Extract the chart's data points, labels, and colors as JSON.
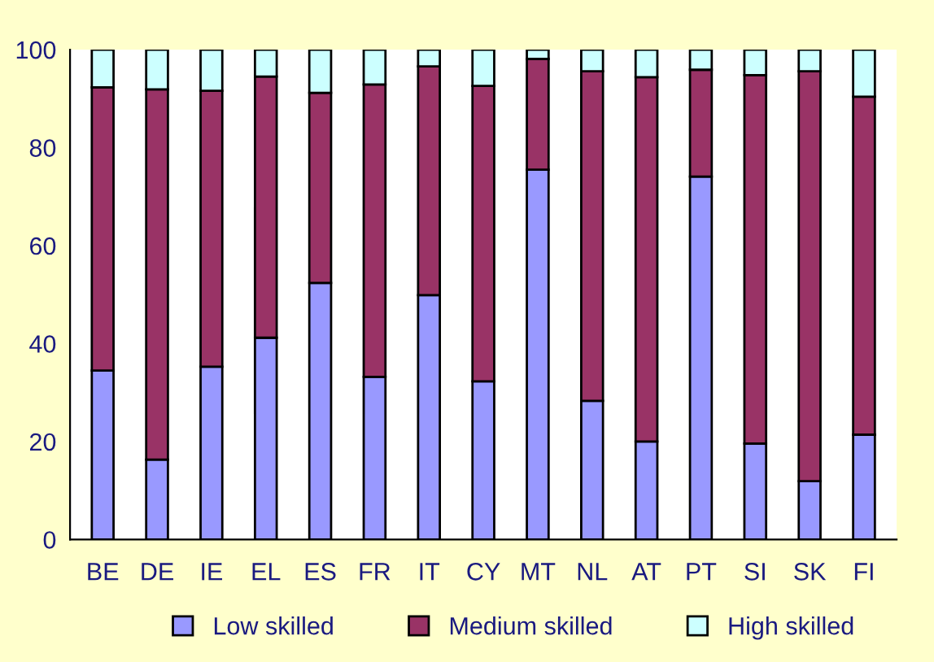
{
  "chart_data": {
    "type": "bar",
    "stacked": true,
    "categories": [
      "BE",
      "DE",
      "IE",
      "EL",
      "ES",
      "FR",
      "IT",
      "CY",
      "MT",
      "NL",
      "AT",
      "PT",
      "SI",
      "SK",
      "FI"
    ],
    "series": [
      {
        "name": "Low skilled",
        "color": "#9999ff",
        "values": [
          34.5,
          16.3,
          35.3,
          41.2,
          52.4,
          33.2,
          49.9,
          32.3,
          75.5,
          28.3,
          20.0,
          74.1,
          19.6,
          11.9,
          21.4
        ]
      },
      {
        "name": "Medium skilled",
        "color": "#993366",
        "values": [
          57.8,
          75.6,
          56.3,
          53.3,
          38.8,
          59.7,
          46.7,
          60.3,
          22.6,
          67.3,
          74.4,
          21.8,
          75.2,
          83.7,
          69.0
        ]
      },
      {
        "name": "High skilled",
        "color": "#ccffff",
        "values": [
          7.7,
          8.1,
          8.4,
          5.5,
          8.8,
          7.1,
          3.4,
          7.4,
          1.9,
          4.4,
          5.6,
          4.1,
          5.2,
          4.4,
          9.6
        ]
      }
    ],
    "ylim": [
      0,
      100
    ],
    "yticks": [
      0,
      20,
      40,
      60,
      80,
      100
    ],
    "grid": false,
    "legend": "bottom"
  }
}
